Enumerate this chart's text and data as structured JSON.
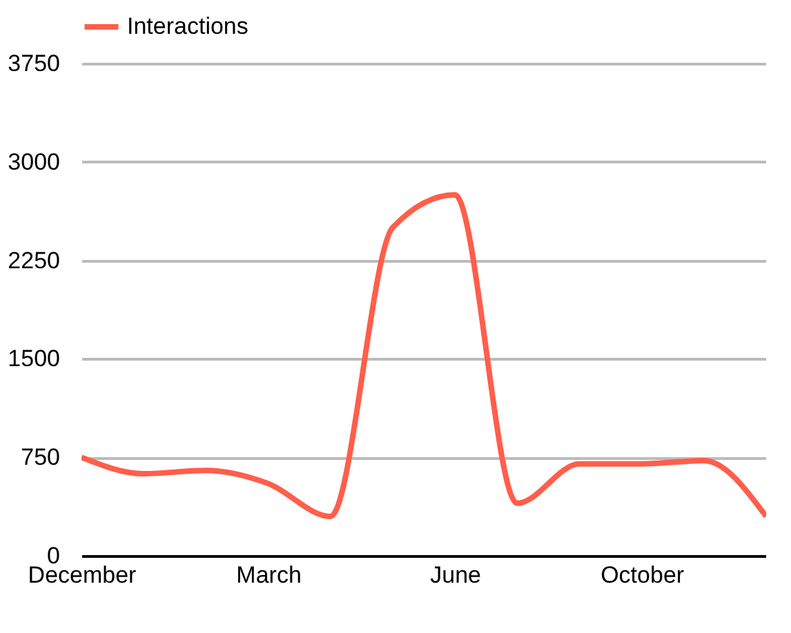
{
  "chart_data": {
    "type": "line",
    "categories": [
      "December",
      null,
      null,
      "March",
      null,
      null,
      "June",
      null,
      null,
      "October",
      null,
      null
    ],
    "series": [
      {
        "name": "Interactions",
        "color": "#ff5e4b",
        "values": [
          750,
          625,
          650,
          550,
          300,
          2500,
          2750,
          400,
          700,
          700,
          725,
          300
        ]
      }
    ],
    "ylim": [
      0,
      3750
    ],
    "yticks": [
      0,
      750,
      1500,
      2250,
      3000,
      3750
    ],
    "grid": "y",
    "legend": "top",
    "marker": "none",
    "line_style": "solid"
  }
}
